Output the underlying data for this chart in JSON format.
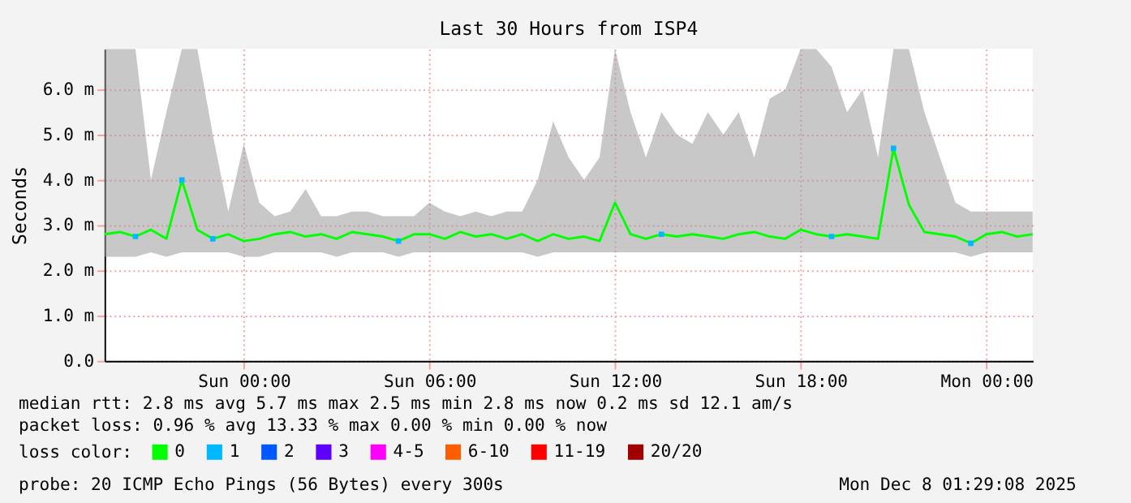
{
  "chart_data": {
    "type": "line",
    "title": "Last 30 Hours from ISP4",
    "ylabel": "Seconds",
    "legend_title": "loss color:",
    "xlim": [
      "2025-12-06T19:30",
      "2025-12-08T01:30"
    ],
    "xticks": [
      {
        "value": "2025-12-07T00:00",
        "label": "Sun 00:00"
      },
      {
        "value": "2025-12-07T06:00",
        "label": "Sun 06:00"
      },
      {
        "value": "2025-12-07T12:00",
        "label": "Sun 12:00"
      },
      {
        "value": "2025-12-07T18:00",
        "label": "Sun 18:00"
      },
      {
        "value": "2025-12-08T00:00",
        "label": "Mon 00:00"
      }
    ],
    "ylim": [
      0,
      6.9
    ],
    "yticks": [
      {
        "value": 0,
        "label": "0.0"
      },
      {
        "value": 1,
        "label": "1.0 m"
      },
      {
        "value": 2,
        "label": "2.0 m"
      },
      {
        "value": 3,
        "label": "3.0 m"
      },
      {
        "value": 4,
        "label": "4.0 m"
      },
      {
        "value": 5,
        "label": "5.0 m"
      },
      {
        "value": 6,
        "label": "6.0 m"
      }
    ],
    "grid": true,
    "legend": "bottom",
    "x": [
      "2025-12-06T19:30",
      "2025-12-06T20:00",
      "2025-12-06T20:30",
      "2025-12-06T21:00",
      "2025-12-06T21:30",
      "2025-12-06T22:00",
      "2025-12-06T22:30",
      "2025-12-06T23:00",
      "2025-12-06T23:30",
      "2025-12-07T00:00",
      "2025-12-07T00:30",
      "2025-12-07T01:00",
      "2025-12-07T01:30",
      "2025-12-07T02:00",
      "2025-12-07T02:30",
      "2025-12-07T03:00",
      "2025-12-07T03:30",
      "2025-12-07T04:00",
      "2025-12-07T04:30",
      "2025-12-07T05:00",
      "2025-12-07T05:30",
      "2025-12-07T06:00",
      "2025-12-07T06:30",
      "2025-12-07T07:00",
      "2025-12-07T07:30",
      "2025-12-07T08:00",
      "2025-12-07T08:30",
      "2025-12-07T09:00",
      "2025-12-07T09:30",
      "2025-12-07T10:00",
      "2025-12-07T10:30",
      "2025-12-07T11:00",
      "2025-12-07T11:30",
      "2025-12-07T12:00",
      "2025-12-07T12:30",
      "2025-12-07T13:00",
      "2025-12-07T13:30",
      "2025-12-07T14:00",
      "2025-12-07T14:30",
      "2025-12-07T15:00",
      "2025-12-07T15:30",
      "2025-12-07T16:00",
      "2025-12-07T16:30",
      "2025-12-07T17:00",
      "2025-12-07T17:30",
      "2025-12-07T18:00",
      "2025-12-07T18:30",
      "2025-12-07T19:00",
      "2025-12-07T19:30",
      "2025-12-07T20:00",
      "2025-12-07T20:30",
      "2025-12-07T21:00",
      "2025-12-07T21:30",
      "2025-12-07T22:00",
      "2025-12-07T22:30",
      "2025-12-07T23:00",
      "2025-12-07T23:30",
      "2025-12-08T00:00",
      "2025-12-08T00:30",
      "2025-12-08T01:00",
      "2025-12-08T01:30"
    ],
    "series": [
      {
        "name": "0",
        "color": "#00ff00",
        "type": "line",
        "values": [
          2.8,
          2.85,
          2.75,
          2.9,
          2.7,
          4.0,
          2.9,
          2.7,
          2.8,
          2.65,
          2.7,
          2.8,
          2.85,
          2.75,
          2.8,
          2.7,
          2.85,
          2.8,
          2.75,
          2.65,
          2.8,
          2.8,
          2.7,
          2.85,
          2.75,
          2.8,
          2.7,
          2.8,
          2.65,
          2.8,
          2.7,
          2.75,
          2.65,
          3.5,
          2.8,
          2.7,
          2.8,
          2.75,
          2.8,
          2.75,
          2.7,
          2.8,
          2.85,
          2.75,
          2.7,
          2.9,
          2.8,
          2.75,
          2.8,
          2.75,
          2.7,
          4.7,
          3.45,
          2.85,
          2.8,
          2.75,
          2.6,
          2.8,
          2.85,
          2.75,
          2.8
        ],
        "lower": [
          2.3,
          2.3,
          2.3,
          2.4,
          2.3,
          2.4,
          2.4,
          2.4,
          2.4,
          2.3,
          2.3,
          2.4,
          2.4,
          2.4,
          2.4,
          2.3,
          2.4,
          2.4,
          2.4,
          2.3,
          2.4,
          2.4,
          2.4,
          2.4,
          2.4,
          2.4,
          2.4,
          2.4,
          2.3,
          2.4,
          2.4,
          2.4,
          2.4,
          2.4,
          2.4,
          2.4,
          2.4,
          2.4,
          2.4,
          2.4,
          2.4,
          2.4,
          2.4,
          2.4,
          2.4,
          2.4,
          2.4,
          2.4,
          2.4,
          2.4,
          2.4,
          2.4,
          2.4,
          2.4,
          2.4,
          2.4,
          2.3,
          2.4,
          2.4,
          2.4,
          2.4
        ],
        "upper": [
          6.9,
          6.9,
          6.9,
          4.0,
          5.5,
          6.9,
          6.9,
          5.0,
          3.3,
          4.8,
          3.5,
          3.2,
          3.3,
          3.8,
          3.2,
          3.2,
          3.3,
          3.3,
          3.2,
          3.2,
          3.2,
          3.5,
          3.3,
          3.2,
          3.3,
          3.2,
          3.3,
          3.3,
          4.0,
          5.3,
          4.5,
          4.0,
          4.5,
          6.9,
          5.5,
          4.5,
          5.5,
          5.0,
          4.8,
          5.5,
          5.0,
          5.5,
          4.5,
          5.8,
          6.0,
          6.9,
          6.9,
          6.5,
          5.5,
          6.0,
          4.5,
          6.9,
          6.9,
          5.5,
          4.5,
          3.5,
          3.3,
          3.3,
          3.3,
          3.3,
          3.3
        ]
      },
      {
        "name": "1",
        "color": "#00b8ff",
        "type": "scatter",
        "x": [
          "2025-12-06T20:30",
          "2025-12-06T22:00",
          "2025-12-06T23:00",
          "2025-12-07T05:00",
          "2025-12-07T13:30",
          "2025-12-07T19:00",
          "2025-12-07T21:00",
          "2025-12-07T23:30"
        ],
        "values": [
          2.75,
          4.0,
          2.7,
          2.65,
          2.8,
          2.75,
          4.7,
          2.6
        ]
      },
      {
        "name": "2",
        "color": "#0059ff",
        "type": "scatter",
        "values": [
          null,
          null,
          null,
          null,
          null,
          null,
          null,
          null,
          null,
          null,
          null,
          null,
          null,
          null,
          null,
          null,
          null,
          null,
          null,
          null,
          null,
          null,
          null,
          null,
          null,
          null,
          null,
          null,
          null,
          null,
          null,
          null,
          null,
          null,
          null,
          null,
          null,
          null,
          null,
          null,
          null,
          null,
          null,
          null,
          null,
          null,
          null,
          null,
          null,
          null,
          null,
          null,
          null,
          null,
          null,
          null,
          null,
          null,
          null,
          null,
          null
        ]
      },
      {
        "name": "3",
        "color": "#5e00ff",
        "type": "scatter",
        "values": [
          null,
          null,
          null,
          null,
          null,
          null,
          null,
          null,
          null,
          null,
          null,
          null,
          null,
          null,
          null,
          null,
          null,
          null,
          null,
          null,
          null,
          null,
          null,
          null,
          null,
          null,
          null,
          null,
          null,
          null,
          null,
          null,
          null,
          null,
          null,
          null,
          null,
          null,
          null,
          null,
          null,
          null,
          null,
          null,
          null,
          null,
          null,
          null,
          null,
          null,
          null,
          null,
          null,
          null,
          null,
          null,
          null,
          null,
          null,
          null,
          null
        ]
      },
      {
        "name": "4-5",
        "color": "#ff00ff",
        "type": "scatter",
        "values": [
          null,
          null,
          null,
          null,
          null,
          null,
          null,
          null,
          null,
          null,
          null,
          null,
          null,
          null,
          null,
          null,
          null,
          null,
          null,
          null,
          null,
          null,
          null,
          null,
          null,
          null,
          null,
          null,
          null,
          null,
          null,
          null,
          null,
          null,
          null,
          null,
          null,
          null,
          null,
          null,
          null,
          null,
          null,
          null,
          null,
          null,
          null,
          null,
          null,
          null,
          null,
          null,
          null,
          null,
          null,
          null,
          null,
          null,
          null,
          null,
          null
        ]
      },
      {
        "name": "6-10",
        "color": "#ff5e00",
        "type": "scatter",
        "values": [
          null,
          null,
          null,
          null,
          null,
          null,
          null,
          null,
          null,
          null,
          null,
          null,
          null,
          null,
          null,
          null,
          null,
          null,
          null,
          null,
          null,
          null,
          null,
          null,
          null,
          null,
          null,
          null,
          null,
          null,
          null,
          null,
          null,
          null,
          null,
          null,
          null,
          null,
          null,
          null,
          null,
          null,
          null,
          null,
          null,
          null,
          null,
          null,
          null,
          null,
          null,
          null,
          null,
          null,
          null,
          null,
          null,
          null,
          null,
          null,
          null
        ]
      },
      {
        "name": "11-19",
        "color": "#ff0000",
        "type": "scatter",
        "values": [
          null,
          null,
          null,
          null,
          null,
          null,
          null,
          null,
          null,
          null,
          null,
          null,
          null,
          null,
          null,
          null,
          null,
          null,
          null,
          null,
          null,
          null,
          null,
          null,
          null,
          null,
          null,
          null,
          null,
          null,
          null,
          null,
          null,
          null,
          null,
          null,
          null,
          null,
          null,
          null,
          null,
          null,
          null,
          null,
          null,
          null,
          null,
          null,
          null,
          null,
          null,
          null,
          null,
          null,
          null,
          null,
          null,
          null,
          null,
          null,
          null
        ]
      },
      {
        "name": "20/20",
        "color": "#a10000",
        "type": "scatter",
        "values": [
          null,
          null,
          null,
          null,
          null,
          null,
          null,
          null,
          null,
          null,
          null,
          null,
          null,
          null,
          null,
          null,
          null,
          null,
          null,
          null,
          null,
          null,
          null,
          null,
          null,
          null,
          null,
          null,
          null,
          null,
          null,
          null,
          null,
          null,
          null,
          null,
          null,
          null,
          null,
          null,
          null,
          null,
          null,
          null,
          null,
          null,
          null,
          null,
          null,
          null,
          null,
          null,
          null,
          null,
          null,
          null,
          null,
          null,
          null,
          null,
          null
        ]
      }
    ],
    "annotations": [
      "median rtt:  2.8 ms avg  5.7 ms max  2.5 ms min  2.8 ms now  0.2 ms sd  12.1   am/s",
      "packet loss: 0.96 % avg  13.33 % max  0.00 % min  0.00 % now",
      "probe:       20 ICMP Echo Pings (56 Bytes) every 300s",
      "Mon Dec  8 01:29:08 2025"
    ]
  }
}
